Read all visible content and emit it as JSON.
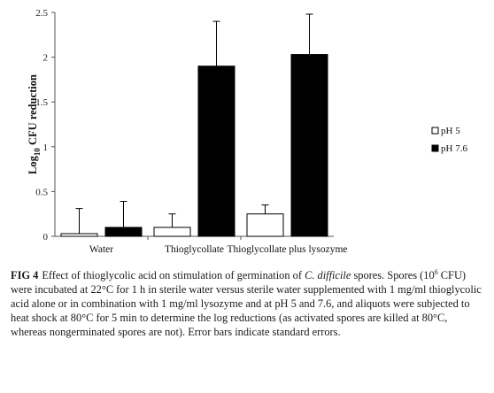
{
  "chart_data": {
    "type": "bar",
    "categories": [
      "Water",
      "Thioglycollate",
      "Thioglycollate plus lysozyme"
    ],
    "series": [
      {
        "name": "pH 5",
        "values": [
          0.03,
          0.1,
          0.25
        ],
        "errors": [
          0.28,
          0.15,
          0.1
        ],
        "color": "#ffffff"
      },
      {
        "name": "pH 7.6",
        "values": [
          0.1,
          1.9,
          2.03
        ],
        "errors": [
          0.29,
          0.5,
          0.45
        ],
        "color": "#000000"
      }
    ],
    "ylim": [
      0,
      2.5
    ],
    "yticks": [
      "0",
      "0.5",
      "1",
      "1.5",
      "2",
      "2.5"
    ],
    "ylabel_base": "Log",
    "ylabel_sub": "10",
    "ylabel_rest": " CFU reduction",
    "legend_position": "right",
    "grid": false
  },
  "caption": {
    "label": "FIG 4",
    "parts": [
      {
        "t": "Effect of thioglycolic acid on stimulation of germination of "
      },
      {
        "t": "C. difficile",
        "i": true
      },
      {
        "t": " spores. Spores (10"
      },
      {
        "t": "6",
        "sup": true
      },
      {
        "t": " CFU) were incubated at 22°C for 1 h in sterile water versus sterile water supplemented with 1 mg/ml thioglycolic acid alone or in combination with 1 mg/ml lysozyme and at pH 5 and 7.6, and aliquots were subjected to heat shock at 80°C for 5 min to determine the log reductions (as activated spores are killed at 80°C, whereas nongerminated spores are not). Error bars indicate standard errors."
      }
    ]
  }
}
